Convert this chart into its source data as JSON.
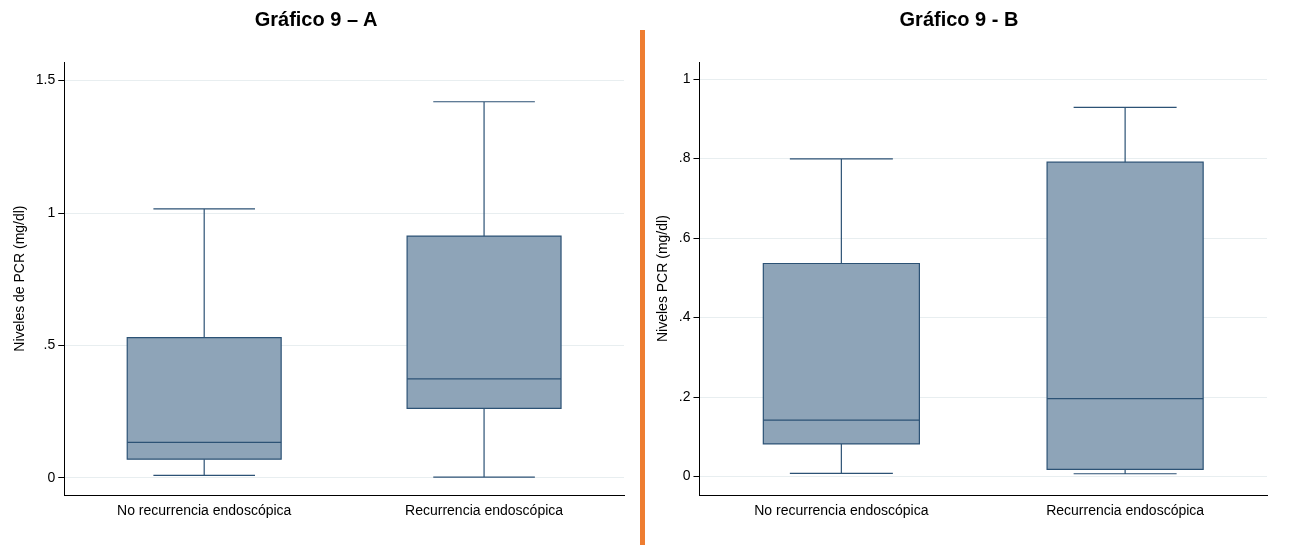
{
  "chart_data": [
    {
      "type": "box",
      "title": "Gráfico 9 – A",
      "ylabel": "Niveles de PCR (mg/dl)",
      "categories": [
        "No recurrencia endoscópica",
        "Recurrencia endoscópica"
      ],
      "color": "#8ea4b8",
      "boxes": [
        {
          "low": 0.01,
          "q1": 0.071,
          "median": 0.134,
          "q3": 0.53,
          "high": 1.016
        },
        {
          "low": 0.003,
          "q1": 0.263,
          "median": 0.374,
          "q3": 0.913,
          "high": 1.42
        }
      ],
      "ylim": [
        -0.065,
        1.57
      ],
      "yticks": [
        {
          "value": 0,
          "label": "0"
        },
        {
          "value": 0.5,
          "label": ".5"
        },
        {
          "value": 1,
          "label": "1"
        },
        {
          "value": 1.5,
          "label": "1.5"
        }
      ],
      "grid": "y"
    },
    {
      "type": "box",
      "title": "Gráfico 9 - B",
      "ylabel": "Niveles PCR (mg/dl)",
      "categories": [
        "No recurrencia endoscópica",
        "Recurrencia endoscópica"
      ],
      "color": "#8ea4b8",
      "boxes": [
        {
          "low": 0.008,
          "q1": 0.082,
          "median": 0.142,
          "q3": 0.536,
          "high": 0.799
        },
        {
          "low": 0.007,
          "q1": 0.018,
          "median": 0.196,
          "q3": 0.791,
          "high": 0.929
        }
      ],
      "ylim": [
        -0.047,
        1.043
      ],
      "yticks": [
        {
          "value": 0,
          "label": "0"
        },
        {
          "value": 0.2,
          "label": ".2"
        },
        {
          "value": 0.4,
          "label": ".4"
        },
        {
          "value": 0.6,
          "label": ".6"
        },
        {
          "value": 0.8,
          "label": ".8"
        },
        {
          "value": 1,
          "label": "1"
        }
      ],
      "grid": "y"
    }
  ]
}
